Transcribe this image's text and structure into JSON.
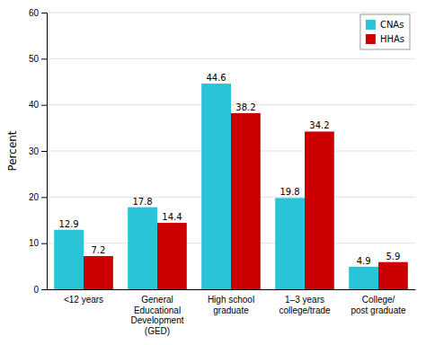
{
  "chart_data": {
    "type": "bar",
    "categories": [
      "<12 years",
      "General\nEducational\nDevelopment\n(GED)",
      "High school\ngraduate",
      "1–3 years\ncollege/trade",
      "College/\npost graduate"
    ],
    "series": [
      {
        "name": "CNAs",
        "color": "#29C4D8",
        "values": [
          12.9,
          17.8,
          44.6,
          19.8,
          4.9
        ]
      },
      {
        "name": "HHAs",
        "color": "#CC0000",
        "values": [
          7.2,
          14.4,
          38.2,
          34.2,
          5.9
        ]
      }
    ],
    "ylabel": "Percent",
    "ylim": [
      0,
      60
    ],
    "yticks": [
      0,
      10,
      20,
      30,
      40,
      50,
      60
    ],
    "grid": true,
    "legend": "upper right",
    "data_labels": true
  }
}
